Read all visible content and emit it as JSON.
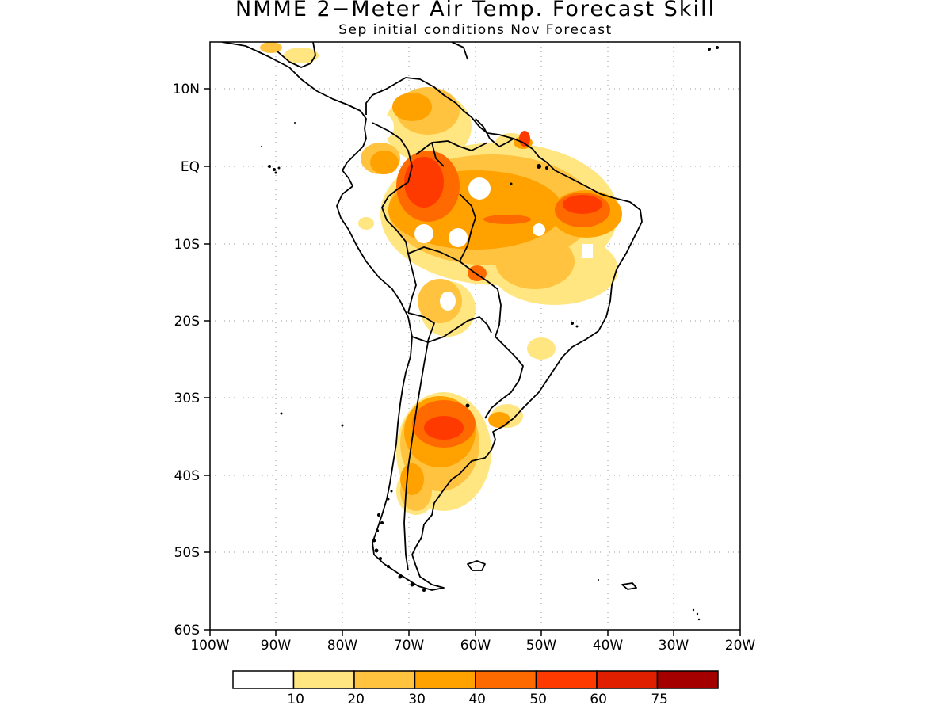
{
  "title": "NMME 2−Meter Air Temp. Forecast Skill",
  "subtitle": "Sep initial conditions   Nov Forecast",
  "map": {
    "lon_range": [
      -100,
      -20
    ],
    "lat_range": [
      -60,
      15
    ],
    "lat_labels": [
      "10N",
      "EQ",
      "10S",
      "20S",
      "30S",
      "40S",
      "50S",
      "60S"
    ],
    "lon_labels": [
      "100W",
      "90W",
      "80W",
      "70W",
      "60W",
      "50W",
      "40W",
      "30W",
      "20W"
    ],
    "grid": "dotted"
  },
  "legend": {
    "colors": [
      "#ffffff",
      "#ffe680",
      "#ffc340",
      "#ffa200",
      "#ff6a00",
      "#ff3a00",
      "#e01e00",
      "#a50000"
    ],
    "labels": [
      "10",
      "20",
      "30",
      "40",
      "50",
      "60",
      "75"
    ]
  }
}
